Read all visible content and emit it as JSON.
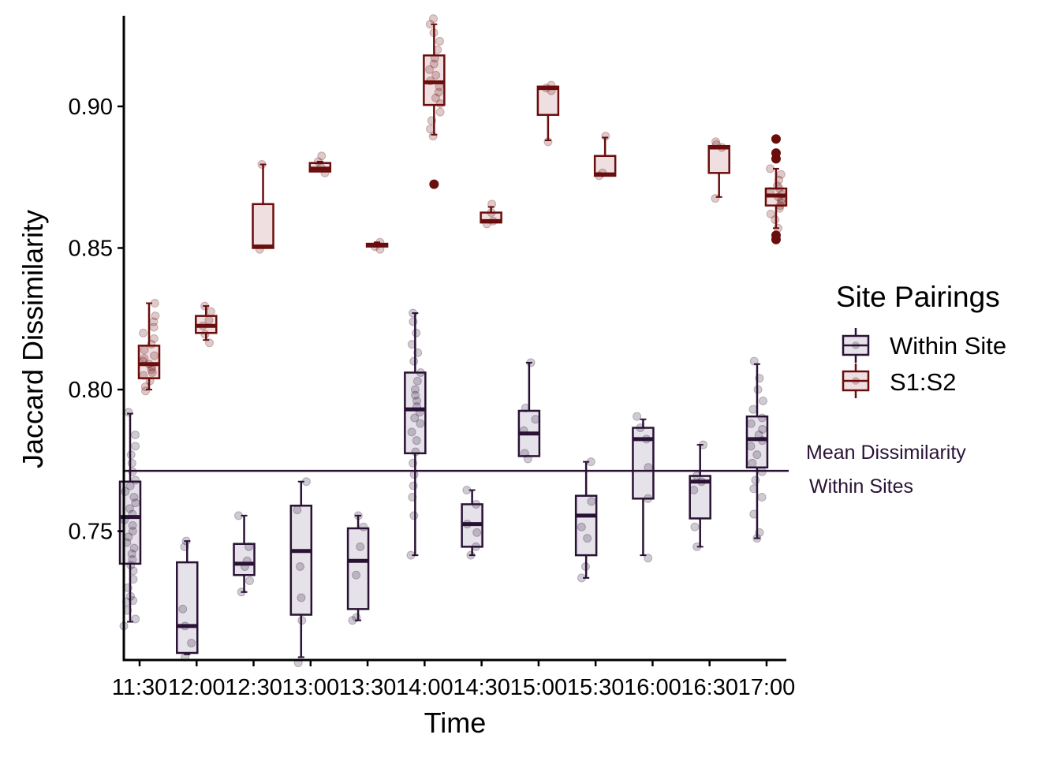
{
  "chart_data": {
    "type": "box",
    "title": "",
    "xlabel": "Time",
    "ylabel": "Jaccard Dissimilarity",
    "ylim": [
      0.7045,
      0.932
    ],
    "yticks": [
      "0.75",
      "0.80",
      "0.85",
      "0.90"
    ],
    "ytick_values": [
      0.75,
      0.8,
      0.85,
      0.9
    ],
    "categories": [
      "11:30",
      "12:00",
      "12:30",
      "13:00",
      "13:30",
      "14:00",
      "14:30",
      "15:00",
      "15:30",
      "16:00",
      "16:30",
      "17:00"
    ],
    "grid": false,
    "legend": {
      "title": "Site Pairings",
      "position": "right",
      "items": [
        "Within Site",
        "S1:S2"
      ]
    },
    "reference_line": {
      "value": 0.7713,
      "label_line1": "Mean Dissimilarity",
      "label_line2": "Within Sites",
      "color": "#2a1235"
    },
    "series": [
      {
        "name": "Within Site",
        "color": "#2a1235",
        "fill": "#e6e2e9",
        "boxes": [
          {
            "category": "11:30",
            "whisker_low": 0.718,
            "q1": 0.7385,
            "median": 0.755,
            "q3": 0.7675,
            "whisker_high": 0.7915,
            "outliers": [],
            "points": [
              0.7165,
              0.719,
              0.722,
              0.725,
              0.7255,
              0.727,
              0.73,
              0.733,
              0.736,
              0.738,
              0.74,
              0.742,
              0.744,
              0.746,
              0.748,
              0.75,
              0.752,
              0.754,
              0.756,
              0.758,
              0.76,
              0.762,
              0.764,
              0.766,
              0.768,
              0.771,
              0.774,
              0.777,
              0.78,
              0.784,
              0.792
            ]
          },
          {
            "category": "12:00",
            "whisker_low": 0.7065,
            "q1": 0.707,
            "median": 0.7165,
            "q3": 0.739,
            "whisker_high": 0.7465,
            "outliers": [],
            "points": [
              0.7055,
              0.7105,
              0.7165,
              0.7225,
              0.7445,
              0.7465
            ]
          },
          {
            "category": "12:30",
            "whisker_low": 0.7285,
            "q1": 0.7345,
            "median": 0.7385,
            "q3": 0.7455,
            "whisker_high": 0.7555,
            "outliers": [],
            "points": [
              0.7285,
              0.7325,
              0.7375,
              0.7395,
              0.7445,
              0.7555
            ]
          },
          {
            "category": "13:00",
            "whisker_low": 0.7055,
            "q1": 0.7205,
            "median": 0.743,
            "q3": 0.759,
            "whisker_high": 0.7675,
            "outliers": [],
            "points": [
              0.7035,
              0.7185,
              0.7265,
              0.7375,
              0.7575,
              0.7675
            ]
          },
          {
            "category": "13:30",
            "whisker_low": 0.7185,
            "q1": 0.7225,
            "median": 0.7395,
            "q3": 0.751,
            "whisker_high": 0.7555,
            "outliers": [],
            "points": [
              0.7185,
              0.7195,
              0.7345,
              0.7445,
              0.7515,
              0.7555
            ]
          },
          {
            "category": "14:00",
            "whisker_low": 0.7415,
            "q1": 0.7775,
            "median": 0.793,
            "q3": 0.806,
            "whisker_high": 0.827,
            "outliers": [],
            "points": [
              0.7415,
              0.7555,
              0.762,
              0.766,
              0.77,
              0.774,
              0.778,
              0.782,
              0.785,
              0.788,
              0.79,
              0.792,
              0.794,
              0.796,
              0.798,
              0.8,
              0.803,
              0.806,
              0.81,
              0.813,
              0.816,
              0.82,
              0.824,
              0.827
            ]
          },
          {
            "category": "14:30",
            "whisker_low": 0.7415,
            "q1": 0.7445,
            "median": 0.7525,
            "q3": 0.7595,
            "whisker_high": 0.7645,
            "outliers": [],
            "points": [
              0.7415,
              0.7445,
              0.7495,
              0.7525,
              0.7595,
              0.7645
            ]
          },
          {
            "category": "15:00",
            "whisker_low": 0.7765,
            "q1": 0.7765,
            "median": 0.7845,
            "q3": 0.7925,
            "whisker_high": 0.8095,
            "outliers": [],
            "points": [
              0.7755,
              0.7775,
              0.7855,
              0.7895,
              0.7935,
              0.8095
            ]
          },
          {
            "category": "15:30",
            "whisker_low": 0.7335,
            "q1": 0.7415,
            "median": 0.7555,
            "q3": 0.7625,
            "whisker_high": 0.7745,
            "outliers": [],
            "points": [
              0.7335,
              0.7375,
              0.7475,
              0.7515,
              0.7605,
              0.7745
            ]
          },
          {
            "category": "16:00",
            "whisker_low": 0.7415,
            "q1": 0.7615,
            "median": 0.7825,
            "q3": 0.7865,
            "whisker_high": 0.7895,
            "outliers": [],
            "points": [
              0.7405,
              0.7615,
              0.7725,
              0.7825,
              0.7865,
              0.7905
            ]
          },
          {
            "category": "16:30",
            "whisker_low": 0.7445,
            "q1": 0.7545,
            "median": 0.7675,
            "q3": 0.7695,
            "whisker_high": 0.7805,
            "outliers": [],
            "points": [
              0.7445,
              0.7515,
              0.7645,
              0.7675,
              0.7695,
              0.7805
            ]
          },
          {
            "category": "17:00",
            "whisker_low": 0.7475,
            "q1": 0.7725,
            "median": 0.7825,
            "q3": 0.7905,
            "whisker_high": 0.809,
            "outliers": [],
            "points": [
              0.7475,
              0.7495,
              0.756,
              0.762,
              0.765,
              0.768,
              0.771,
              0.774,
              0.777,
              0.78,
              0.782,
              0.784,
              0.786,
              0.788,
              0.79,
              0.793,
              0.796,
              0.8,
              0.804,
              0.81
            ]
          }
        ]
      },
      {
        "name": "S1:S2",
        "color": "#6b0d0d",
        "fill": "#efdfe1",
        "boxes": [
          {
            "category": "11:30",
            "whisker_low": 0.8,
            "q1": 0.804,
            "median": 0.809,
            "q3": 0.8155,
            "whisker_high": 0.8305,
            "outliers": [],
            "points": [
              0.7995,
              0.801,
              0.803,
              0.805,
              0.806,
              0.807,
              0.808,
              0.809,
              0.81,
              0.811,
              0.812,
              0.814,
              0.816,
              0.818,
              0.82,
              0.822,
              0.824,
              0.826,
              0.8305
            ]
          },
          {
            "category": "12:00",
            "whisker_low": 0.8175,
            "q1": 0.82,
            "median": 0.8225,
            "q3": 0.826,
            "whisker_high": 0.8295,
            "outliers": [],
            "points": [
              0.8165,
              0.8195,
              0.8225,
              0.8245,
              0.8275,
              0.8295
            ]
          },
          {
            "category": "12:30",
            "whisker_low": 0.85,
            "q1": 0.85,
            "median": 0.8505,
            "q3": 0.8655,
            "whisker_high": 0.8795,
            "outliers": [],
            "points": [
              0.8495,
              0.8795
            ]
          },
          {
            "category": "13:00",
            "whisker_low": 0.877,
            "q1": 0.877,
            "median": 0.878,
            "q3": 0.88,
            "whisker_high": 0.8805,
            "outliers": [],
            "points": [
              0.8765,
              0.8785,
              0.8805,
              0.8825
            ]
          },
          {
            "category": "13:30",
            "whisker_low": 0.8505,
            "q1": 0.8505,
            "median": 0.851,
            "q3": 0.8515,
            "whisker_high": 0.852,
            "outliers": [],
            "points": [
              0.8495,
              0.8505,
              0.852
            ]
          },
          {
            "category": "14:00",
            "whisker_low": 0.89,
            "q1": 0.9005,
            "median": 0.9085,
            "q3": 0.918,
            "whisker_high": 0.929,
            "outliers": [
              0.8725
            ],
            "points": [
              0.8895,
              0.892,
              0.895,
              0.898,
              0.901,
              0.903,
              0.905,
              0.907,
              0.909,
              0.911,
              0.913,
              0.915,
              0.917,
              0.92,
              0.923,
              0.926,
              0.929,
              0.931
            ]
          },
          {
            "category": "14:30",
            "whisker_low": 0.859,
            "q1": 0.859,
            "median": 0.8595,
            "q3": 0.8625,
            "whisker_high": 0.8645,
            "outliers": [],
            "points": [
              0.8585,
              0.8595,
              0.8625,
              0.8655
            ]
          },
          {
            "category": "15:00",
            "whisker_low": 0.888,
            "q1": 0.897,
            "median": 0.9065,
            "q3": 0.907,
            "whisker_high": 0.907,
            "outliers": [],
            "points": [
              0.8875,
              0.9055,
              0.9065,
              0.9075
            ]
          },
          {
            "category": "15:30",
            "whisker_low": 0.8755,
            "q1": 0.8755,
            "median": 0.876,
            "q3": 0.8825,
            "whisker_high": 0.889,
            "outliers": [],
            "points": [
              0.8755,
              0.8765,
              0.8895
            ]
          },
          {
            "category": "16:00",
            "whisker_low": null,
            "q1": null,
            "median": null,
            "q3": null,
            "whisker_high": null,
            "outliers": [],
            "points": []
          },
          {
            "category": "16:30",
            "whisker_low": 0.868,
            "q1": 0.8765,
            "median": 0.8855,
            "q3": 0.886,
            "whisker_high": 0.886,
            "outliers": [],
            "points": [
              0.8675,
              0.8855,
              0.8865,
              0.8875
            ]
          },
          {
            "category": "17:00",
            "whisker_low": 0.857,
            "q1": 0.865,
            "median": 0.8685,
            "q3": 0.871,
            "whisker_high": 0.878,
            "outliers": [
              0.853,
              0.8545,
              0.8815,
              0.8835,
              0.8885
            ],
            "points": [
              0.857,
              0.86,
              0.862,
              0.864,
              0.865,
              0.866,
              0.867,
              0.868,
              0.869,
              0.87,
              0.871,
              0.872,
              0.874,
              0.876,
              0.878
            ]
          }
        ]
      }
    ]
  }
}
